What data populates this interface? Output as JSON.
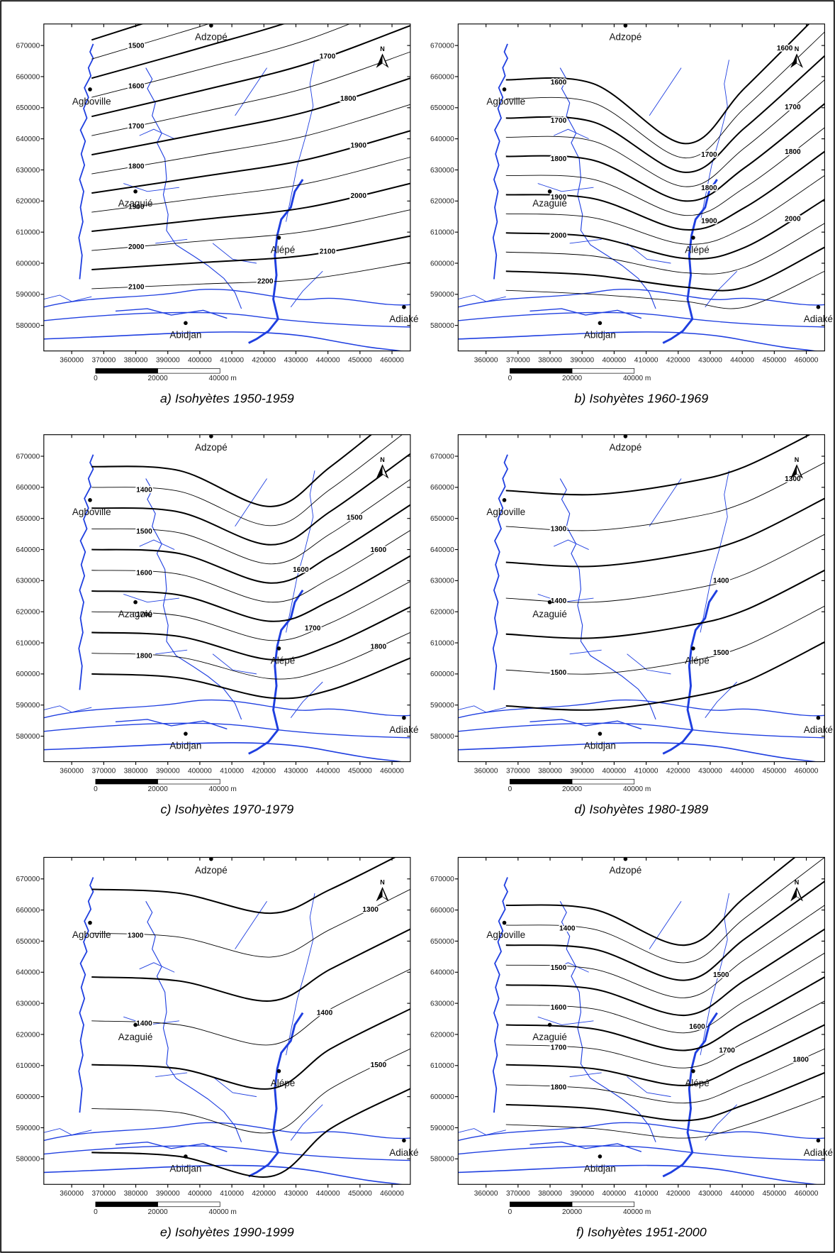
{
  "panels": [
    {
      "caption": "a) Isohyètes 1950-1959",
      "contour_labels": [
        1500,
        1600,
        1700,
        1700,
        1800,
        1800,
        1900,
        1900,
        2000,
        2000,
        2100,
        2100,
        2200
      ]
    },
    {
      "caption": "b) Isohyètes 1960-1969",
      "contour_labels": [
        1600,
        1600,
        1700,
        1700,
        1700,
        1800,
        1800,
        1800,
        1900,
        1900,
        2000,
        2000
      ]
    },
    {
      "caption": "c) Isohyètes 1970-1979",
      "contour_labels": [
        1400,
        1500,
        1500,
        1600,
        1600,
        1600,
        1700,
        1700,
        1800,
        1800
      ]
    },
    {
      "caption": "d) Isohyètes 1980-1989",
      "contour_labels": [
        1300,
        1300,
        1400,
        1400,
        1500,
        1500
      ]
    },
    {
      "caption": "e) Isohyètes 1990-1999",
      "contour_labels": [
        1300,
        1300,
        1400,
        1400,
        1500
      ]
    },
    {
      "caption": "f) Isohyètes 1951-2000",
      "contour_labels": [
        1400,
        1500,
        1500,
        1600,
        1600,
        1700,
        1700,
        1800,
        1800
      ]
    }
  ],
  "axes": {
    "xticks": [
      360000,
      370000,
      380000,
      390000,
      400000,
      410000,
      420000,
      430000,
      440000,
      450000,
      460000
    ],
    "yticks": [
      580000,
      590000,
      600000,
      610000,
      620000,
      630000,
      640000,
      650000,
      660000,
      670000
    ]
  },
  "places": [
    "Adzopé",
    "Agboville",
    "Azaguié",
    "Alépé",
    "Abidjan",
    "Adiaké"
  ],
  "north": "N",
  "scale_bar": [
    0,
    20000,
    "40000 m"
  ]
}
